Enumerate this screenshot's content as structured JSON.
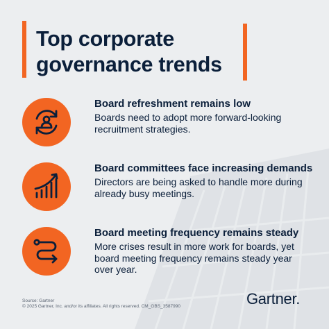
{
  "header": {
    "title_line1": "Top corporate",
    "title_line2": "governance trends"
  },
  "trends": [
    {
      "icon": "rotate-person-icon",
      "heading": "Board refreshment remains low",
      "description": "Boards need to adopt more forward-looking recruitment strategies."
    },
    {
      "icon": "bar-chart-up-icon",
      "heading": "Board committees face increasing demands",
      "description": "Directors are being asked to handle more during already busy meetings."
    },
    {
      "icon": "winding-arrow-icon",
      "heading": "Board meeting frequency remains steady",
      "description": "More crises result in more work for boards, yet board meeting frequency remains steady year over year."
    }
  ],
  "footer": {
    "source": "Source: Gartner",
    "copyright": "© 2025 Gartner, Inc. and/or its affiliates. All rights reserved. CM_GBS_3587990",
    "logo_text": "Gartner."
  },
  "colors": {
    "accent": "#f26522",
    "text": "#0b1f3a",
    "background": "#eceef0"
  }
}
